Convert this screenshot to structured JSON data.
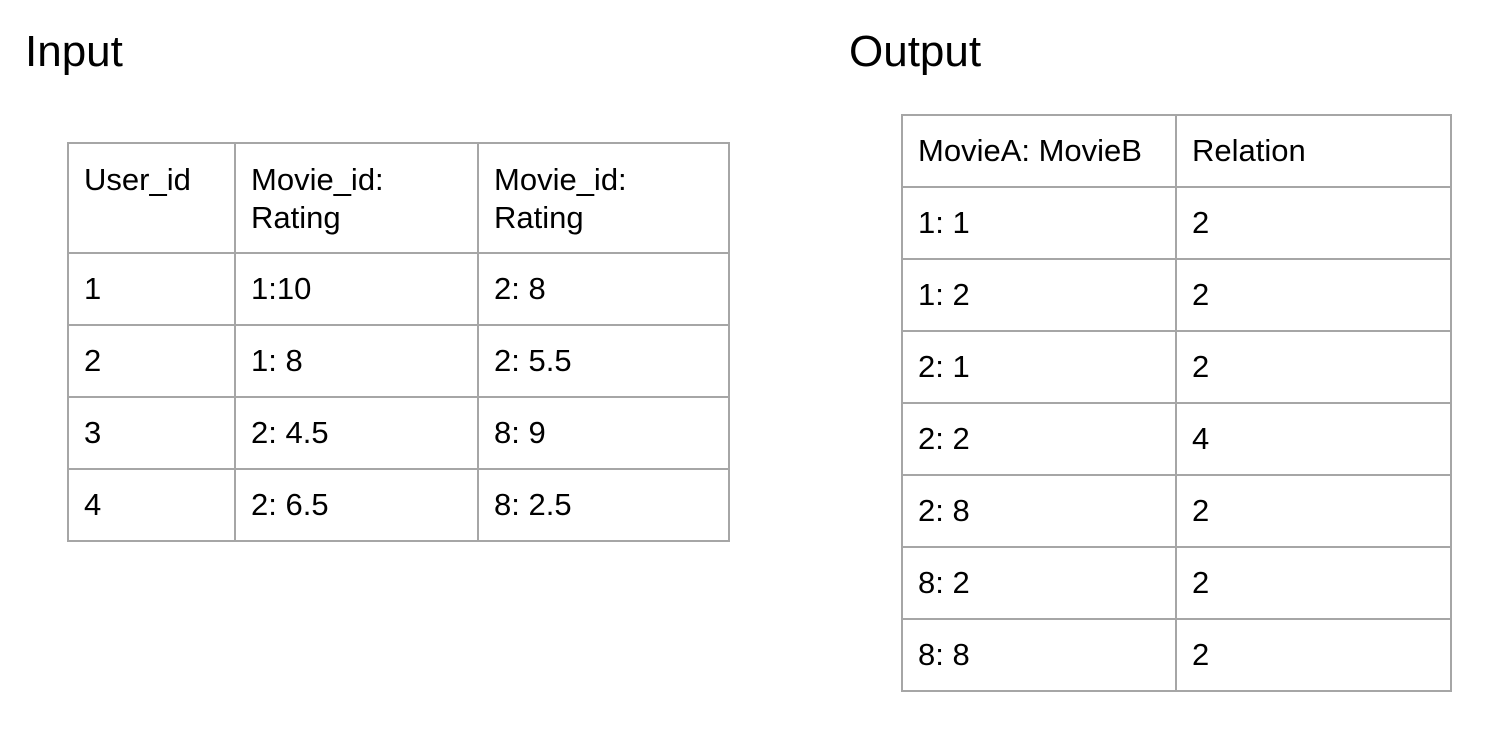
{
  "input": {
    "title": "Input",
    "header": {
      "col1": "User_id",
      "col2_line1": "Movie_id:",
      "col2_line2": "Rating",
      "col3_line1": "Movie_id:",
      "col3_line2": "Rating"
    },
    "rows": [
      [
        "1",
        "1:10",
        "2: 8"
      ],
      [
        "2",
        "1: 8",
        "2: 5.5"
      ],
      [
        "3",
        "2: 4.5",
        "8: 9"
      ],
      [
        "4",
        "2: 6.5",
        "8: 2.5"
      ]
    ]
  },
  "output": {
    "title": "Output",
    "header": {
      "col1": "MovieA: MovieB",
      "col2": "Relation"
    },
    "rows": [
      [
        "1: 1",
        "2"
      ],
      [
        "1: 2",
        "2"
      ],
      [
        "2: 1",
        "2"
      ],
      [
        "2: 2",
        "4"
      ],
      [
        "2: 8",
        "2"
      ],
      [
        "8: 2",
        "2"
      ],
      [
        "8: 8",
        "2"
      ]
    ]
  },
  "colors": {
    "border": "#a6a6a6",
    "text": "#000000",
    "background": "#ffffff"
  }
}
